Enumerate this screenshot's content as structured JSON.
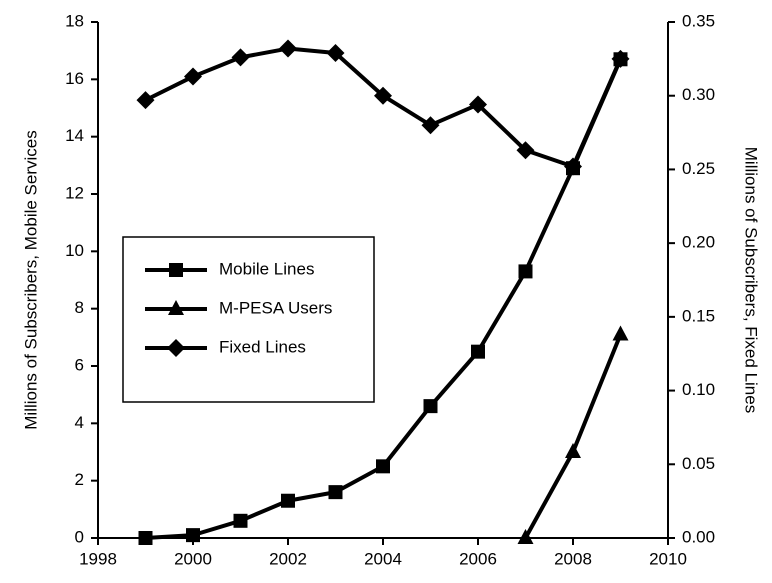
{
  "chart_data": {
    "type": "line",
    "x": [
      1999,
      2000,
      2001,
      2002,
      2003,
      2004,
      2005,
      2006,
      2007,
      2008,
      2009
    ],
    "xlim": [
      1998,
      2010
    ],
    "xticks": [
      1998,
      2000,
      2002,
      2004,
      2006,
      2008,
      2010
    ],
    "ylim": [
      0,
      18
    ],
    "yticks": [
      0,
      2,
      4,
      6,
      8,
      10,
      12,
      14,
      16,
      18
    ],
    "y2lim": [
      0,
      0.35
    ],
    "y2ticks": [
      {
        "value": 0,
        "label": "0.00"
      },
      {
        "value": 0.05,
        "label": "0.05"
      },
      {
        "value": 0.1,
        "label": "0.10"
      },
      {
        "value": 0.15,
        "label": "0.15"
      },
      {
        "value": 0.2,
        "label": "0.20"
      },
      {
        "value": 0.25,
        "label": "0.25"
      },
      {
        "value": 0.3,
        "label": "0.30"
      },
      {
        "value": 0.35,
        "label": "0.35"
      }
    ],
    "ylabel": "Millions of Subscribers, Mobile Services",
    "y2label": "Millions of Subscribers, Fixed Lines",
    "legend": "left",
    "series": [
      {
        "name": "Mobile Lines",
        "color": "#000000",
        "marker": "square",
        "values": [
          0,
          0.1,
          0.6,
          1.3,
          1.6,
          2.5,
          4.6,
          6.5,
          9.3,
          12.9,
          16.7
        ]
      },
      {
        "name": "M-PESA Users",
        "color": "#000000",
        "marker": "triangle",
        "values": [
          null,
          null,
          null,
          null,
          null,
          null,
          null,
          null,
          0,
          3.0,
          7.1
        ]
      },
      {
        "name": "Fixed Lines",
        "color": "#000000",
        "marker": "diamond",
        "axis": "y2",
        "values": [
          0.297,
          0.313,
          0.326,
          0.332,
          0.329,
          0.3,
          0.28,
          0.294,
          0.263,
          0.252,
          0.325
        ]
      }
    ]
  }
}
